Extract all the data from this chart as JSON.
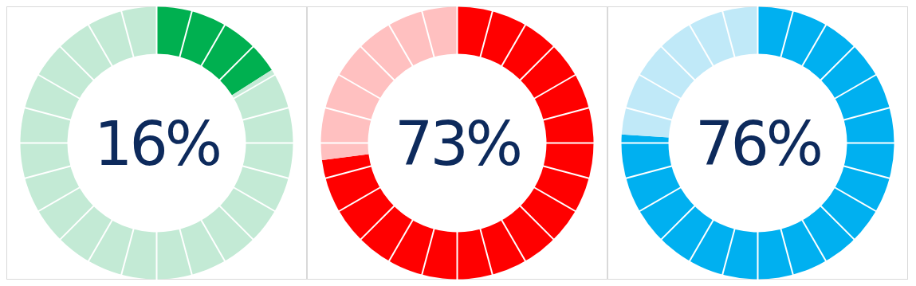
{
  "chart_data": [
    {
      "type": "donut",
      "categories": [
        null,
        null
      ],
      "values": [
        16,
        84
      ],
      "colors": [
        "#00b050",
        "#c3ead5"
      ],
      "annotations": [
        "16%"
      ]
    },
    {
      "type": "donut",
      "categories": [
        null,
        null
      ],
      "values": [
        73,
        27
      ],
      "colors": [
        "#ff0000",
        "#ffc0c0"
      ],
      "annotations": [
        "73%"
      ]
    },
    {
      "type": "donut",
      "categories": [
        null,
        null
      ],
      "values": [
        76,
        24
      ],
      "colors": [
        "#00b0f0",
        "#c0e9f8"
      ],
      "annotations": [
        "76%"
      ]
    }
  ]
}
